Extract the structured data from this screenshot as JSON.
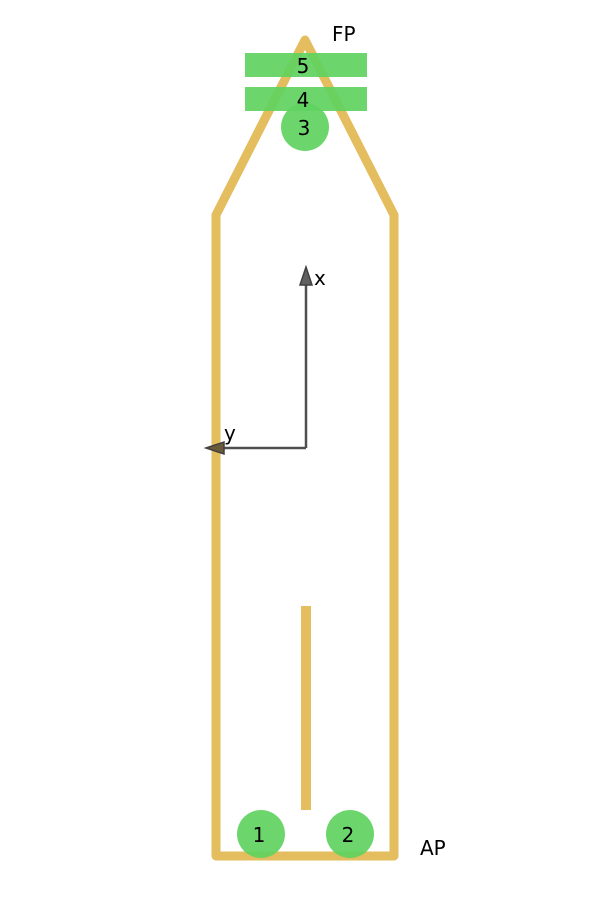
{
  "labels": {
    "forward_perpendicular": "FP",
    "aft_perpendicular": "AP"
  },
  "axes": {
    "x_label": "x",
    "y_label": "y"
  },
  "thrusters": [
    {
      "id": "1",
      "kind": "azimuth"
    },
    {
      "id": "2",
      "kind": "azimuth"
    },
    {
      "id": "3",
      "kind": "azimuth"
    },
    {
      "id": "4",
      "kind": "tunnel"
    },
    {
      "id": "5",
      "kind": "tunnel"
    }
  ],
  "colors": {
    "hull": "#e3bd5e",
    "thruster": "#5fd35f",
    "axis": "#505050",
    "text": "#000000",
    "background": "#ffffff"
  }
}
